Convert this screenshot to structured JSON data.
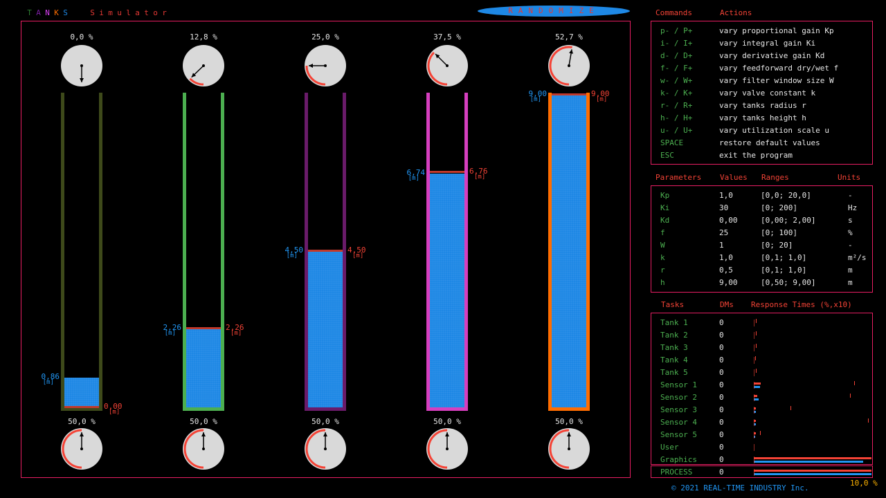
{
  "app_title": "TANKS Simulator",
  "title_letters": [
    {
      "ch": "T",
      "color": "#2e7d32"
    },
    {
      "ch": "A",
      "color": "#7b1fa2"
    },
    {
      "ch": "N",
      "color": "#e040fb"
    },
    {
      "ch": "K",
      "color": "#ff6d00"
    },
    {
      "ch": "S",
      "color": "#1e88e5"
    },
    {
      "ch": " ",
      "color": "#000000"
    },
    {
      "ch": " ",
      "color": "#000000"
    },
    {
      "ch": "S",
      "color": "#e53935"
    },
    {
      "ch": "i",
      "color": "#e53935"
    },
    {
      "ch": "m",
      "color": "#e53935"
    },
    {
      "ch": "u",
      "color": "#e53935"
    },
    {
      "ch": "l",
      "color": "#e53935"
    },
    {
      "ch": "a",
      "color": "#e53935"
    },
    {
      "ch": "t",
      "color": "#e53935"
    },
    {
      "ch": "o",
      "color": "#e53935"
    },
    {
      "ch": "r",
      "color": "#e53935"
    }
  ],
  "randomize_label": "RANDOMIZE",
  "tanks": [
    {
      "top_pct": "0,0 %",
      "top_frac": 0.0,
      "color": "#3e4a1a",
      "level": 0.86,
      "level_label": "0,86",
      "setpoint": 0.0,
      "setpoint_label": "0,00",
      "bottom_pct": "50,0 %",
      "bottom_frac": 0.5
    },
    {
      "top_pct": "12,8 %",
      "top_frac": 0.128,
      "color": "#4caf50",
      "level": 2.26,
      "level_label": "2,26",
      "setpoint": 2.26,
      "setpoint_label": "2,26",
      "bottom_pct": "50,0 %",
      "bottom_frac": 0.5
    },
    {
      "top_pct": "25,0 %",
      "top_frac": 0.25,
      "color": "#6a1b6a",
      "level": 4.5,
      "level_label": "4,50",
      "setpoint": 4.5,
      "setpoint_label": "4,50",
      "bottom_pct": "50,0 %",
      "bottom_frac": 0.5
    },
    {
      "top_pct": "37,5 %",
      "top_frac": 0.375,
      "color": "#d63fbf",
      "level": 6.74,
      "level_label": "6,74",
      "setpoint": 6.76,
      "setpoint_label": "6,76",
      "bottom_pct": "50,0 %",
      "bottom_frac": 0.5
    },
    {
      "top_pct": "52,7 %",
      "top_frac": 0.527,
      "color": "#ff6d00",
      "level": 9.0,
      "level_label": "9,00",
      "setpoint": 9.0,
      "setpoint_label": "9,00",
      "bottom_pct": "50,0 %",
      "bottom_frac": 0.5
    }
  ],
  "tank_height_max": 9.0,
  "unit_m": "[m]",
  "commands": {
    "header_commands": "Commands",
    "header_actions": "Actions",
    "rows": [
      {
        "key": "p- / P+",
        "action": "vary proportional gain Kp"
      },
      {
        "key": "i- / I+",
        "action": "vary integral gain Ki"
      },
      {
        "key": "d- / D+",
        "action": "vary derivative gain Kd"
      },
      {
        "key": "f- / F+",
        "action": "vary feedforward dry/wet f"
      },
      {
        "key": "w- / W+",
        "action": "vary filter window size W"
      },
      {
        "key": "k- / K+",
        "action": "vary valve constant k"
      },
      {
        "key": "r- / R+",
        "action": "vary tanks radius r"
      },
      {
        "key": "h- / H+",
        "action": "vary tanks height h"
      },
      {
        "key": "u- / U+",
        "action": "vary utilization scale u"
      },
      {
        "key": "SPACE",
        "action": "restore default values"
      },
      {
        "key": "ESC",
        "action": "exit the program"
      }
    ]
  },
  "parameters": {
    "header_parameters": "Parameters",
    "header_values": "Values",
    "header_ranges": "Ranges",
    "header_units": "Units",
    "rows": [
      {
        "name": "Kp",
        "value": "1,0",
        "range": "[0,0; 20,0]",
        "unit": "-"
      },
      {
        "name": "Ki",
        "value": "30",
        "range": "[0; 200]",
        "unit": "Hz"
      },
      {
        "name": "Kd",
        "value": "0,00",
        "range": "[0,00; 2,00]",
        "unit": "s"
      },
      {
        "name": "f",
        "value": "25",
        "range": "[0; 100]",
        "unit": "%"
      },
      {
        "name": "W",
        "value": "1",
        "range": "[0; 20]",
        "unit": "-"
      },
      {
        "name": "k",
        "value": "1,0",
        "range": "[0,1; 1,0]",
        "unit": "m²/s"
      },
      {
        "name": "r",
        "value": "0,5",
        "range": "[0,1; 1,0]",
        "unit": "m"
      },
      {
        "name": "h",
        "value": "9,00",
        "range": "[0,50; 9,00]",
        "unit": "m"
      }
    ]
  },
  "tasks": {
    "header_tasks": "Tasks",
    "header_dms": "DMs",
    "header_response": "Response Times (%,x10)",
    "rows": [
      {
        "name": "Tank 1",
        "dms": "0",
        "red": 0.0,
        "blue": 0.0,
        "tick": 0.02
      },
      {
        "name": "Tank 2",
        "dms": "0",
        "red": 0.0,
        "blue": 0.0,
        "tick": 0.015
      },
      {
        "name": "Tank 3",
        "dms": "0",
        "red": 0.0,
        "blue": 0.0,
        "tick": 0.02
      },
      {
        "name": "Tank 4",
        "dms": "0",
        "red": 0.0,
        "blue": 0.0,
        "tick": 0.012
      },
      {
        "name": "Tank 5",
        "dms": "0",
        "red": 0.0,
        "blue": 0.0,
        "tick": 0.02
      },
      {
        "name": "Sensor 1",
        "dms": "0",
        "red": 0.06,
        "blue": 0.05,
        "tick": 0.85
      },
      {
        "name": "Sensor 2",
        "dms": "0",
        "red": 0.03,
        "blue": 0.04,
        "tick": 0.82
      },
      {
        "name": "Sensor 3",
        "dms": "0",
        "red": 0.02,
        "blue": 0.02,
        "tick": 0.31
      },
      {
        "name": "Sensor 4",
        "dms": "0",
        "red": 0.02,
        "blue": 0.02,
        "tick": 0.97
      },
      {
        "name": "Sensor 5",
        "dms": "0",
        "red": 0.02,
        "blue": 0.01,
        "tick": 0.05
      },
      {
        "name": "User",
        "dms": "0",
        "red": 0.0,
        "blue": 0.0,
        "tick": 0.0
      },
      {
        "name": "Graphics",
        "dms": "0",
        "red": 1.0,
        "blue": 0.93,
        "tick": 0.0
      },
      {
        "name": "PROCESS",
        "dms": "0",
        "red": 1.0,
        "blue": 1.0,
        "tick": 0.0
      }
    ]
  },
  "utilization_label": "10,0 %",
  "copyright": "© 2021 REAL-TIME INDUSTRY Inc."
}
